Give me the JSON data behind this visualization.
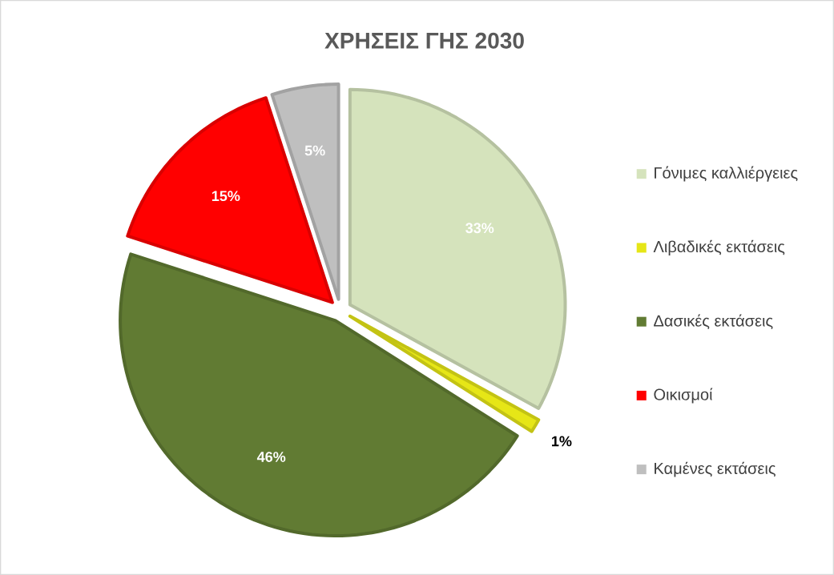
{
  "chart_data": {
    "type": "pie",
    "title": "ΧΡΗΣΕΙΣ ΓΗΣ 2030",
    "categories": [
      "Γόνιμες καλλιέργειες",
      "Λιβαδικές εκτάσεις",
      "Δασικές εκτάσεις",
      "Οικισμοί",
      "Καμένες εκτάσεις"
    ],
    "values": [
      33,
      1,
      46,
      15,
      5
    ],
    "colors": [
      "#d5e3bc",
      "#e6e617",
      "#617b33",
      "#ff0000",
      "#bfbfbf"
    ],
    "value_labels": [
      "33%",
      "1%",
      "46%",
      "15%",
      "5%"
    ],
    "legend": "right"
  }
}
